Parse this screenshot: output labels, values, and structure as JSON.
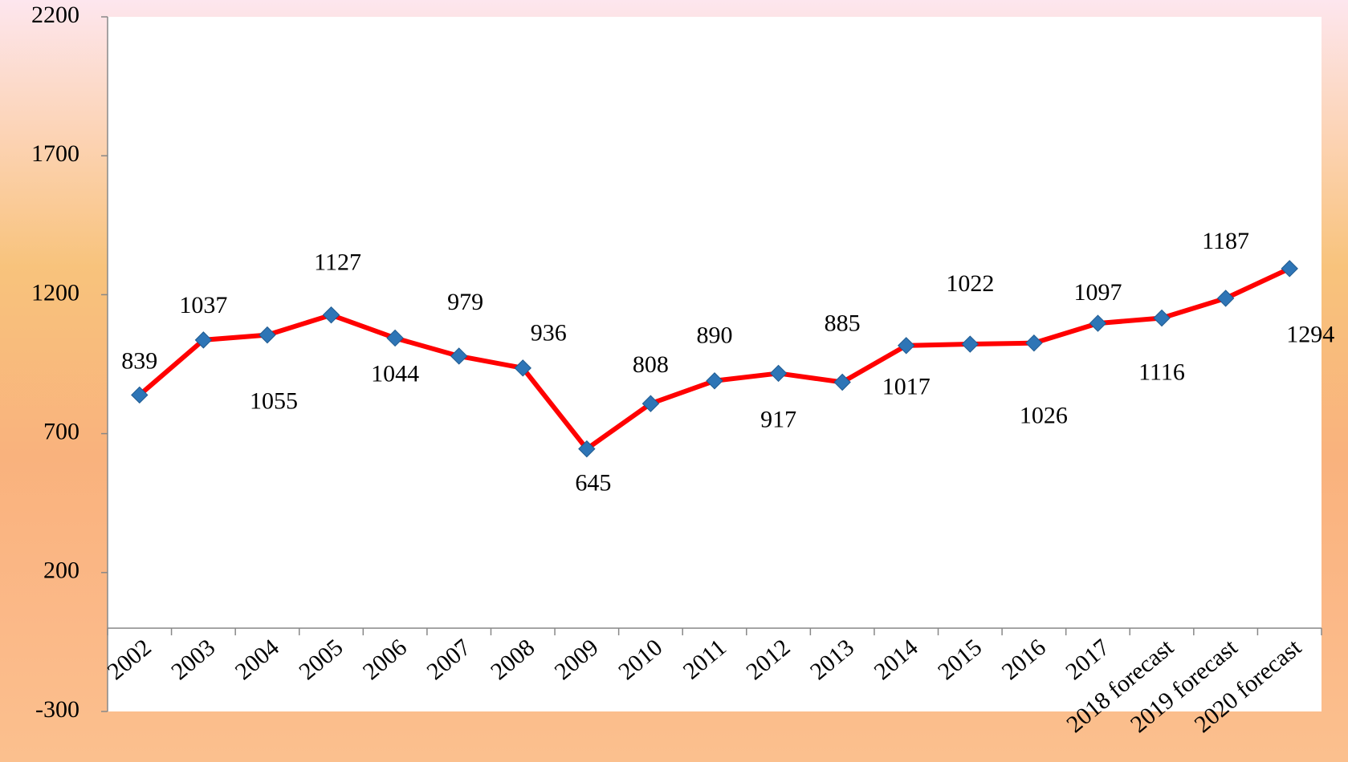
{
  "chart_data": {
    "type": "line",
    "categories": [
      "2002",
      "2003",
      "2004",
      "2005",
      "2006",
      "2007",
      "2008",
      "2009",
      "2010",
      "2011",
      "2012",
      "2013",
      "2014",
      "2015",
      "2016",
      "2017",
      "2018 forecast",
      "2019 forecast",
      "2020 forecast"
    ],
    "values": [
      839,
      1037,
      1055,
      1127,
      1044,
      979,
      936,
      645,
      808,
      890,
      917,
      885,
      1017,
      1022,
      1026,
      1097,
      1116,
      1187,
      1294
    ],
    "color": "#ff0000",
    "marker_color": "#2e75b6",
    "ylim": [
      -300,
      2200
    ],
    "yticks": [
      -300,
      200,
      700,
      1200,
      1700,
      2200
    ],
    "grid": false
  }
}
